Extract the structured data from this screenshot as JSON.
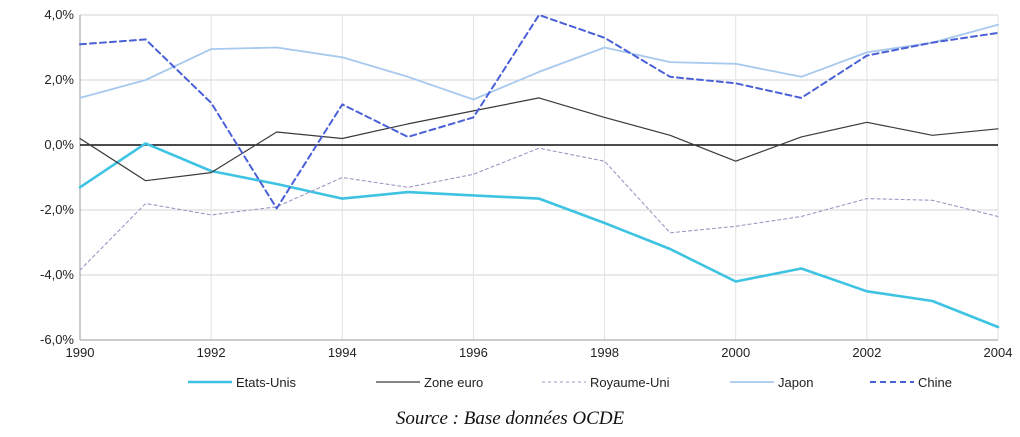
{
  "chart_data": {
    "type": "line",
    "title": "",
    "xlabel": "",
    "ylabel": "",
    "x": [
      1990,
      1991,
      1992,
      1993,
      1994,
      1995,
      1996,
      1997,
      1998,
      1999,
      2000,
      2001,
      2002,
      2003,
      2004
    ],
    "xlim": [
      1990,
      2004
    ],
    "ylim": [
      -6,
      4
    ],
    "x_ticks": [
      1990,
      1992,
      1994,
      1996,
      1998,
      2000,
      2002,
      2004
    ],
    "x_tick_labels": [
      "1990",
      "1992",
      "1994",
      "1996",
      "1998",
      "2000",
      "2002",
      "2004"
    ],
    "y_ticks": [
      4,
      2,
      0,
      -2,
      -4,
      -6
    ],
    "y_tick_labels": [
      "4,0%",
      "2,0%",
      "0,0%",
      "-2,0%",
      "-4,0%",
      "-6,0%"
    ],
    "grid": "horizontal",
    "legend_position": "bottom",
    "series": [
      {
        "name": "Etats-Unis",
        "color": "#3ec3e3",
        "style": "solid-thick",
        "values": [
          -1.3,
          0.05,
          -0.8,
          -1.2,
          -1.65,
          -1.45,
          -1.55,
          -1.65,
          -2.4,
          -3.2,
          -4.2,
          -3.8,
          -4.5,
          -4.8,
          -5.6
        ]
      },
      {
        "name": "Zone euro",
        "color": "#3a3a3a",
        "style": "solid-thin",
        "values": [
          0.2,
          -1.1,
          -0.85,
          0.4,
          0.2,
          0.65,
          1.05,
          1.45,
          0.85,
          0.3,
          -0.5,
          0.25,
          0.7,
          0.3,
          0.5
        ]
      },
      {
        "name": "Royaume-Uni",
        "color": "#9a98c4",
        "style": "dashed-thin",
        "values": [
          -3.85,
          -1.8,
          -2.15,
          -1.9,
          -1.0,
          -1.3,
          -0.9,
          -0.1,
          -0.5,
          -2.7,
          -2.5,
          -2.2,
          -1.65,
          -1.7,
          -2.2
        ]
      },
      {
        "name": "Japon",
        "color": "#a8c9ee",
        "style": "solid",
        "values": [
          1.45,
          2.0,
          2.95,
          3.0,
          2.7,
          2.1,
          1.4,
          2.25,
          3.0,
          2.55,
          2.5,
          2.1,
          2.85,
          3.15,
          3.7
        ]
      },
      {
        "name": "Chine",
        "color": "#4a60d6",
        "style": "dashed-thick",
        "values": [
          3.1,
          3.25,
          1.3,
          -1.95,
          1.25,
          0.25,
          0.85,
          4.0,
          3.3,
          2.1,
          1.9,
          1.45,
          2.75,
          3.15,
          3.45
        ]
      }
    ]
  },
  "caption": {
    "source": "Source : Base données OCDE"
  }
}
